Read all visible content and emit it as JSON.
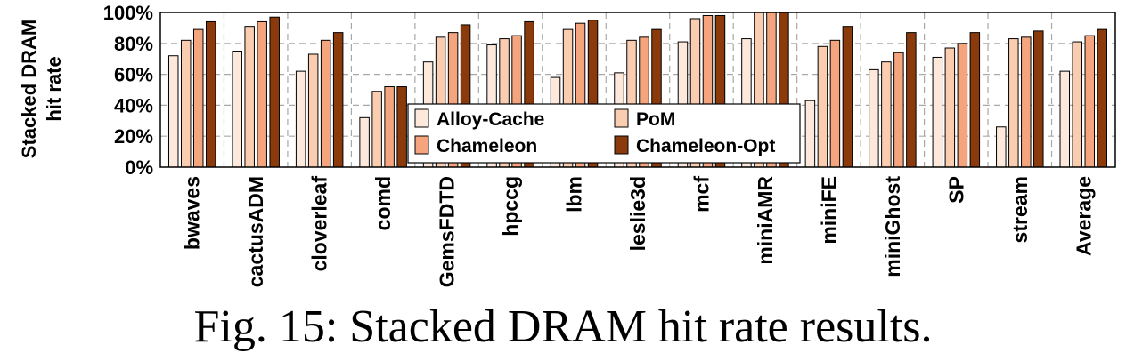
{
  "caption": "Fig. 15: Stacked DRAM hit rate results.",
  "chart_data": {
    "type": "bar",
    "ylabel": [
      "Stacked DRAM",
      "hit rate"
    ],
    "ylim": [
      0,
      100
    ],
    "yticks": [
      "0%",
      "20%",
      "40%",
      "60%",
      "80%",
      "100%"
    ],
    "grid": true,
    "legend_position": "center",
    "categories": [
      "bwaves",
      "cactusADM",
      "cloverleaf",
      "comd",
      "GemsFDTD",
      "hpccg",
      "lbm",
      "leslie3d",
      "mcf",
      "miniAMR",
      "miniFE",
      "miniGhost",
      "SP",
      "stream",
      "Average"
    ],
    "series": [
      {
        "name": "Alloy-Cache",
        "color": "#fde9dc",
        "values": [
          72,
          75,
          62,
          32,
          68,
          79,
          58,
          61,
          81,
          83,
          43,
          63,
          71,
          26,
          62
        ]
      },
      {
        "name": "PoM",
        "color": "#fbcdb0",
        "values": [
          82,
          91,
          73,
          49,
          84,
          83,
          89,
          82,
          96,
          100,
          78,
          68,
          77,
          83,
          81
        ]
      },
      {
        "name": "Chameleon",
        "color": "#f4a57d",
        "values": [
          89,
          94,
          82,
          52,
          87,
          85,
          93,
          84,
          98,
          100,
          82,
          74,
          80,
          84,
          85
        ]
      },
      {
        "name": "Chameleon-Opt",
        "color": "#8b3a0c",
        "values": [
          94,
          97,
          87,
          52,
          92,
          94,
          95,
          89,
          98,
          100,
          91,
          87,
          87,
          88,
          89
        ]
      }
    ]
  }
}
